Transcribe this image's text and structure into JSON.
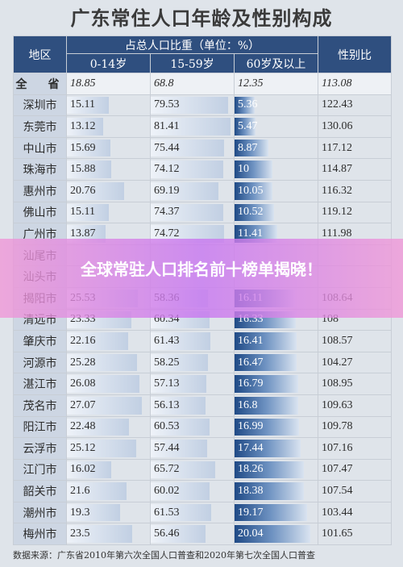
{
  "title": "广东常住人口年龄及性别构成",
  "headers": {
    "region": "地区",
    "share_group": "占总人口比重（单位：%）",
    "age_0_14": "0-14岁",
    "age_15_59": "15-59岁",
    "age_60_plus": "60岁及以上",
    "sex_ratio": "性别比"
  },
  "rows": [
    {
      "name": "全　省",
      "a": "18.85",
      "b": "68.8",
      "c": "12.35",
      "d": "113.08"
    },
    {
      "name": "深圳市",
      "a": "15.11",
      "b": "79.53",
      "c": "5.36",
      "d": "122.43"
    },
    {
      "name": "东莞市",
      "a": "13.12",
      "b": "81.41",
      "c": "5.47",
      "d": "130.06"
    },
    {
      "name": "中山市",
      "a": "15.69",
      "b": "75.44",
      "c": "8.87",
      "d": "117.12"
    },
    {
      "name": "珠海市",
      "a": "15.88",
      "b": "74.12",
      "c": "10",
      "d": "114.87"
    },
    {
      "name": "惠州市",
      "a": "20.76",
      "b": "69.19",
      "c": "10.05",
      "d": "116.32"
    },
    {
      "name": "佛山市",
      "a": "15.11",
      "b": "74.37",
      "c": "10.52",
      "d": "119.12"
    },
    {
      "name": "广州市",
      "a": "13.87",
      "b": "74.72",
      "c": "11.41",
      "d": "111.98"
    },
    {
      "name": "汕尾市",
      "a": "",
      "b": "",
      "c": "",
      "d": ""
    },
    {
      "name": "汕头市",
      "a": "",
      "b": "",
      "c": "",
      "d": ""
    },
    {
      "name": "揭阳市",
      "a": "25.53",
      "b": "58.36",
      "c": "16.11",
      "d": "108.64"
    },
    {
      "name": "清远市",
      "a": "23.33",
      "b": "60.34",
      "c": "16.33",
      "d": "108"
    },
    {
      "name": "肇庆市",
      "a": "22.16",
      "b": "61.43",
      "c": "16.41",
      "d": "108.57"
    },
    {
      "name": "河源市",
      "a": "25.28",
      "b": "58.25",
      "c": "16.47",
      "d": "104.27"
    },
    {
      "name": "湛江市",
      "a": "26.08",
      "b": "57.13",
      "c": "16.79",
      "d": "108.95"
    },
    {
      "name": "茂名市",
      "a": "27.07",
      "b": "56.13",
      "c": "16.8",
      "d": "109.63"
    },
    {
      "name": "阳江市",
      "a": "22.48",
      "b": "60.53",
      "c": "16.99",
      "d": "109.78"
    },
    {
      "name": "云浮市",
      "a": "25.12",
      "b": "57.44",
      "c": "17.44",
      "d": "107.16"
    },
    {
      "name": "江门市",
      "a": "16.02",
      "b": "65.72",
      "c": "18.26",
      "d": "107.47"
    },
    {
      "name": "韶关市",
      "a": "21.6",
      "b": "60.02",
      "c": "18.38",
      "d": "107.54"
    },
    {
      "name": "潮州市",
      "a": "19.3",
      "b": "61.53",
      "c": "19.17",
      "d": "103.44"
    },
    {
      "name": "梅州市",
      "a": "23.5",
      "b": "56.46",
      "c": "20.04",
      "d": "101.65"
    }
  ],
  "source": "数据来源：广东省2010年第六次全国人口普查和2020年第七次全国人口普查",
  "banner_text": "全球常驻人口排名前十榜单揭晓！",
  "colors": {
    "header": "#2f4f7f",
    "banner": "#d88be8"
  }
}
